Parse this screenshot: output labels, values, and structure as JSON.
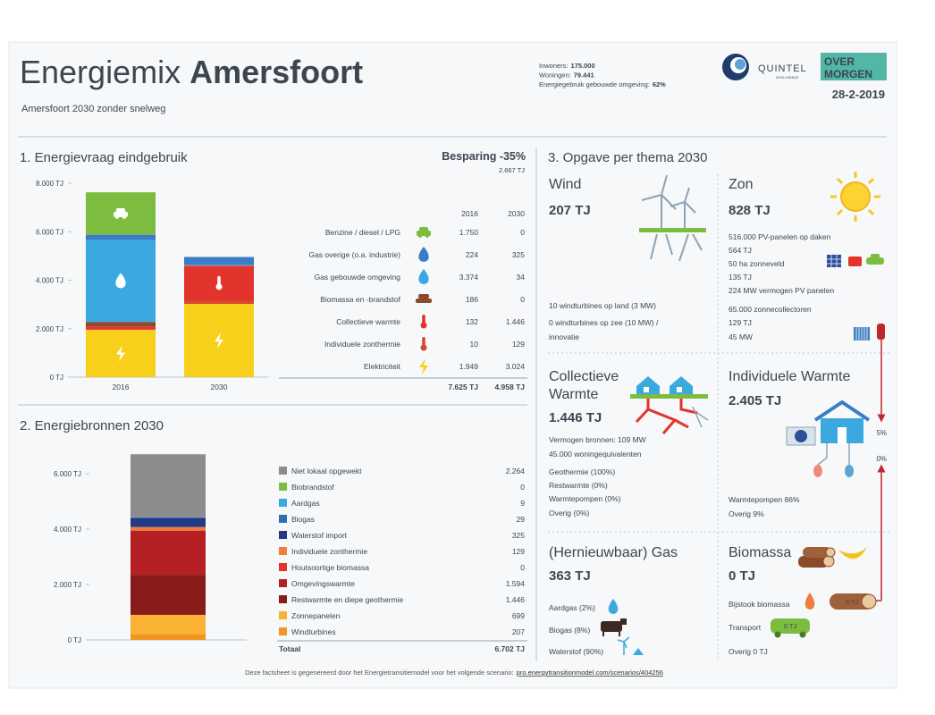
{
  "header": {
    "title_light": "Energiemix",
    "title_bold": "Amersfoort",
    "subtitle": "Amersfoort 2030 zonder snelweg",
    "stats": [
      {
        "label": "Inwoners:",
        "value": "175.000"
      },
      {
        "label": "Woningen:",
        "value": "79.441"
      },
      {
        "label": "Energiegebruik gebouwde omgeving:",
        "value": "62%"
      }
    ],
    "logos": {
      "quintel": "QUINTEL",
      "quintel_sub": "INTELLIGENCE",
      "overmorgen": [
        "OVER",
        "MORGEN"
      ]
    },
    "date": "28-2-2019"
  },
  "chart_data": [
    {
      "type": "bar",
      "stacked": true,
      "title": "1. Energievraag eindgebruik",
      "savings": "Besparing -35%",
      "savings_amount": "2.667 TJ",
      "categories": [
        "2016",
        "2030"
      ],
      "series": [
        {
          "name": "Benzine / diesel / LPG",
          "color": "#7cbd3f",
          "values": [
            1750,
            0
          ],
          "value_labels": [
            "1.750",
            "0"
          ]
        },
        {
          "name": "Gas overige (o.a. industrie)",
          "color": "#3b7dc4",
          "values": [
            224,
            325
          ]
        },
        {
          "name": "Gas gebouwde omgeving",
          "color": "#3ba9e0",
          "values": [
            3374,
            34
          ],
          "value_labels": [
            "3.374",
            "34"
          ]
        },
        {
          "name": "Biomassa en -brandstof",
          "color": "#8b4b2a",
          "values": [
            186,
            0
          ]
        },
        {
          "name": "Collectieve warmte",
          "color": "#e2342c",
          "values": [
            132,
            1446
          ],
          "value_labels": [
            "132",
            "1.446"
          ]
        },
        {
          "name": "Individuele zonthermie",
          "color": "#d9472b",
          "values": [
            10,
            129
          ]
        },
        {
          "name": "Elektriciteit",
          "color": "#f8cf1a",
          "values": [
            1949,
            3024
          ],
          "value_labels": [
            "1.949",
            "3.024"
          ]
        }
      ],
      "ylim": [
        0,
        8000
      ],
      "yticks": [
        {
          "value": 0,
          "label": "0 TJ"
        },
        {
          "value": 2000,
          "label": "2.000 TJ"
        },
        {
          "value": 4000,
          "label": "4.000 TJ"
        },
        {
          "value": 6000,
          "label": "6.000 TJ"
        },
        {
          "value": 8000,
          "label": "8.000 TJ"
        }
      ],
      "totals": [
        7625,
        4958
      ],
      "total_labels": [
        "7.625 TJ",
        "4.958 TJ"
      ]
    },
    {
      "type": "bar",
      "stacked": true,
      "title": "2. Energiebronnen 2030",
      "categories": [
        null
      ],
      "series": [
        {
          "name": "Niet lokaal opgewekt",
          "color": "#8c8c8c",
          "values": [
            2264
          ],
          "value_labels": [
            "2.264"
          ]
        },
        {
          "name": "Biobrandstof",
          "color": "#7cbd3f",
          "values": [
            0
          ]
        },
        {
          "name": "Aardgas",
          "color": "#3ba9e0",
          "values": [
            9
          ]
        },
        {
          "name": "Biogas",
          "color": "#2f6fb5",
          "values": [
            29
          ]
        },
        {
          "name": "Waterstof import",
          "color": "#253a87",
          "values": [
            325
          ]
        },
        {
          "name": "Individuele zonthermie",
          "color": "#ef7d3c",
          "values": [
            129
          ]
        },
        {
          "name": "Houtsoortige biomassa",
          "color": "#e2342c",
          "values": [
            0
          ]
        },
        {
          "name": "Omgevingswarmte",
          "color": "#b52025",
          "values": [
            1594
          ],
          "value_labels": [
            "1.594"
          ]
        },
        {
          "name": "Restwarmte en diepe geothermie",
          "color": "#8a1b1b",
          "values": [
            1446
          ],
          "value_labels": [
            "1.446"
          ]
        },
        {
          "name": "Zonnepanelen",
          "color": "#f9b233",
          "values": [
            699
          ]
        },
        {
          "name": "Windturbines",
          "color": "#f29422",
          "values": [
            207
          ]
        }
      ],
      "ylim": [
        0,
        7000
      ],
      "yticks": [
        {
          "value": 0,
          "label": "0 TJ"
        },
        {
          "value": 2000,
          "label": "2.000 TJ"
        },
        {
          "value": 4000,
          "label": "4.000 TJ"
        },
        {
          "value": 6000,
          "label": "6.000 TJ"
        }
      ],
      "total_name": "Totaal",
      "total": 6702,
      "total_label": "6.702 TJ"
    }
  ],
  "themes": {
    "title": "3. Opgave per thema 2030",
    "wind": {
      "name": "Wind",
      "amount": "207 TJ",
      "lines": [
        "10 windturbines op land (3 MW)",
        "0 windturbines op zee (10 MW) /",
        "innovatie"
      ]
    },
    "zon": {
      "name": "Zon",
      "amount": "828 TJ",
      "lines": [
        "516.000 PV-panelen op daken",
        "564 TJ",
        "50 ha zonneveld",
        "135 TJ",
        "224 MW vermogen PV panelen",
        "65.000 zonnecollectoren",
        "129 TJ",
        "45 MW"
      ]
    },
    "collectieve": {
      "name": [
        "Collectieve",
        "Warmte"
      ],
      "amount": "1.446 TJ",
      "lines": [
        "Vermogen bronnen: 109 MW",
        "45.000 woningequivalenten",
        "Geothermie (100%)",
        "Restwarmte (0%)",
        "Warmtepompen (0%)",
        "Overig (0%)"
      ]
    },
    "individuele": {
      "name": "Individuele Warmte",
      "amount": "2.405 TJ",
      "lines": [
        "Warmtepompen 86%",
        "Overig 9%"
      ],
      "markers": [
        "5%",
        "0%"
      ]
    },
    "gas": {
      "name": "(Hernieuwbaar) Gas",
      "amount": "363 TJ",
      "lines": [
        "Aardgas (2%)",
        "Biogas (8%)",
        "Waterstof (90%)"
      ]
    },
    "biomassa": {
      "name": "Biomassa",
      "amount": "0 TJ",
      "lines": [
        "Bijstook biomassa",
        "Transport",
        "Overig 0 TJ"
      ],
      "badges": [
        "0 TJ",
        "0 TJ"
      ]
    }
  },
  "footer": {
    "text": "Deze factsheet is gegenereerd door het Energietransitiemodel voor het volgende scenario:",
    "link": "pro.energytransitionmodel.com/scenarios/404256"
  }
}
